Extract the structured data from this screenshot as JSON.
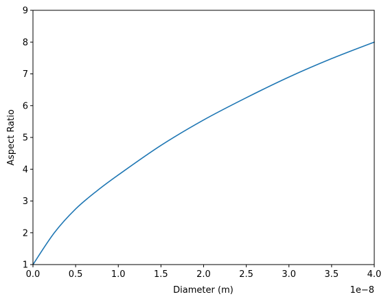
{
  "chart_data": {
    "type": "line",
    "title": "",
    "xlabel": "Diameter (m)",
    "ylabel": "Aspect Ratio",
    "x_offset_label": "1e−8",
    "xlim": [
      0,
      4e-08
    ],
    "ylim": [
      1,
      9
    ],
    "x_ticks": [
      0,
      5e-09,
      1e-08,
      1.5e-08,
      2e-08,
      2.5e-08,
      3e-08,
      3.5e-08,
      4e-08
    ],
    "x_tick_labels": [
      "0.0",
      "0.5",
      "1.0",
      "1.5",
      "2.0",
      "2.5",
      "3.0",
      "3.5",
      "4.0"
    ],
    "y_ticks": [
      1,
      2,
      3,
      4,
      5,
      6,
      7,
      8,
      9
    ],
    "y_tick_labels": [
      "1",
      "2",
      "3",
      "4",
      "5",
      "6",
      "7",
      "8",
      "9"
    ],
    "grid": false,
    "series": [
      {
        "color": "#1f77b4",
        "x": [
          0,
          2.5e-09,
          5e-09,
          7.5e-09,
          1e-08,
          1.5e-08,
          2e-08,
          2.5e-08,
          3e-08,
          3.5e-08,
          4e-08
        ],
        "y": [
          1.0,
          2.0,
          2.75,
          3.32,
          3.82,
          4.75,
          5.55,
          6.25,
          6.9,
          7.48,
          8.0
        ]
      }
    ]
  }
}
